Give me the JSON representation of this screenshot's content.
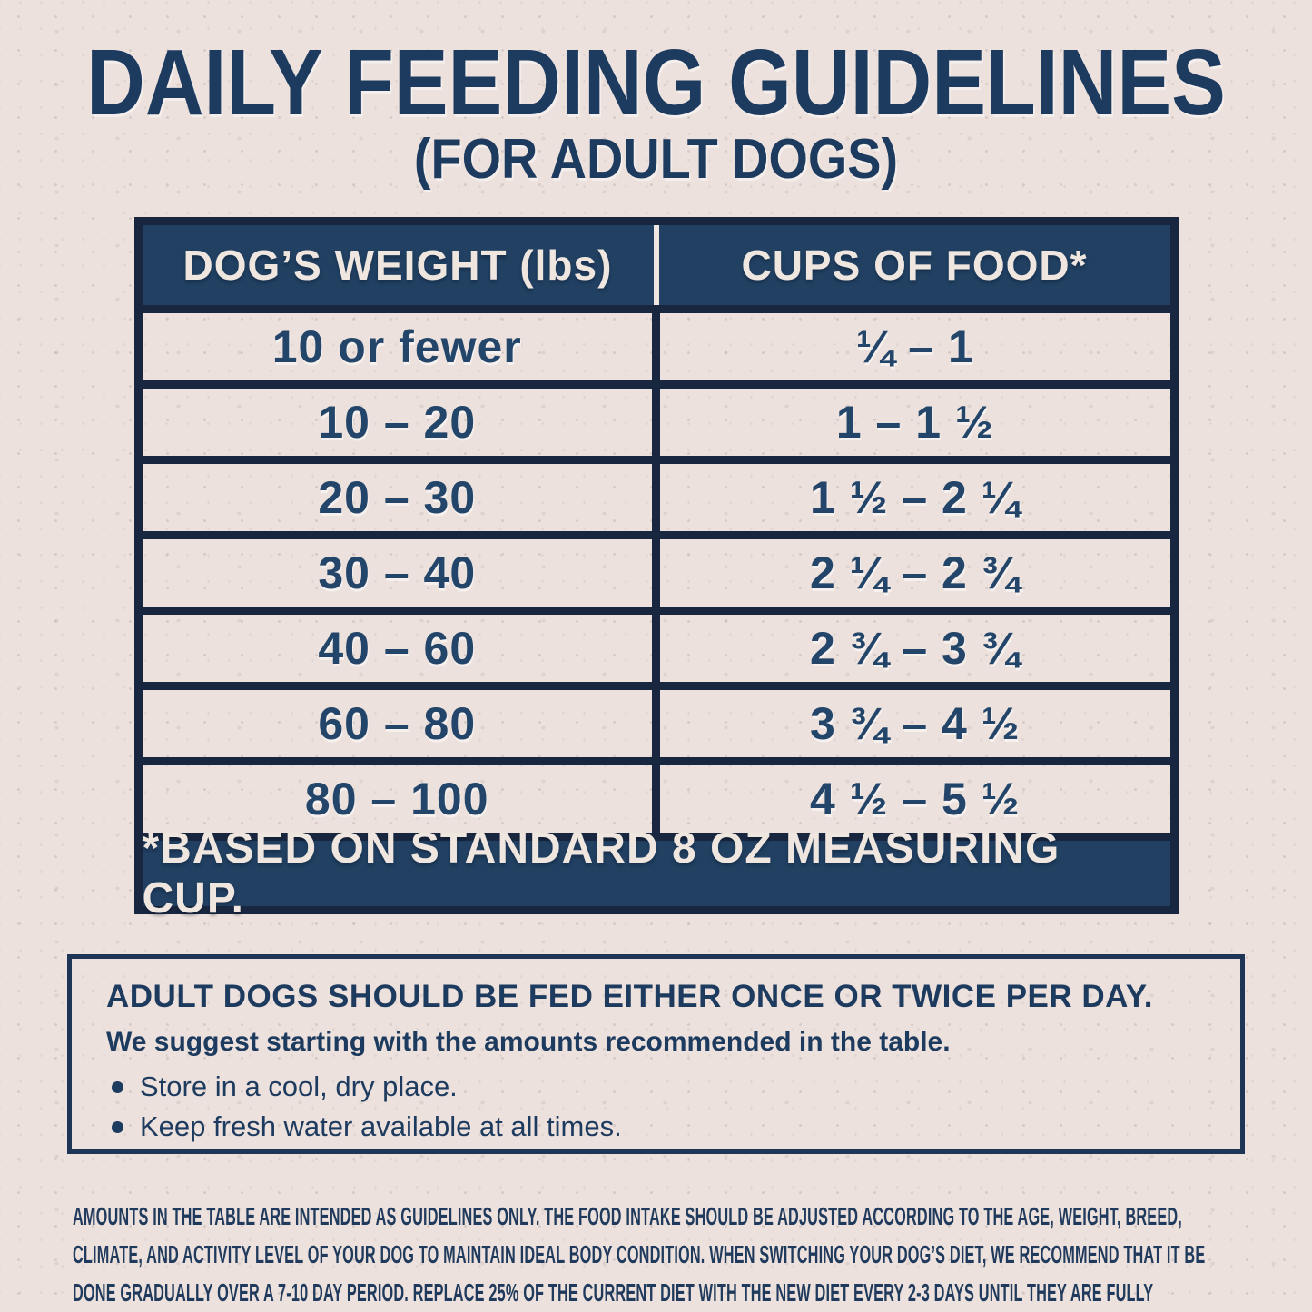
{
  "page": {
    "title": "DAILY FEEDING GUIDELINES",
    "subtitle": "(FOR ADULT DOGS)"
  },
  "table": {
    "headers": {
      "weight": "DOG’S WEIGHT (lbs)",
      "cups": "CUPS OF FOOD*"
    },
    "rows": [
      {
        "weight": "10 or fewer",
        "cups": "¼ – 1"
      },
      {
        "weight": "10 – 20",
        "cups": "1 – 1 ½"
      },
      {
        "weight": "20 – 30",
        "cups": "1 ½ – 2 ¼"
      },
      {
        "weight": "30 – 40",
        "cups": "2 ¼ – 2 ¾"
      },
      {
        "weight": "40 – 60",
        "cups": "2 ¾ – 3 ¾"
      },
      {
        "weight": "60 – 80",
        "cups": "3 ¾ – 4 ½"
      },
      {
        "weight": "80 – 100",
        "cups": "4 ½ – 5 ½"
      }
    ],
    "footnote": "*BASED ON STANDARD 8 OZ MEASURING CUP."
  },
  "info_box": {
    "heading": "ADULT DOGS SHOULD BE FED EITHER ONCE OR TWICE PER DAY.",
    "subheading": "We suggest starting with the amounts recommended in the table.",
    "bullets": [
      "Store in a cool, dry place.",
      "Keep fresh water available at all times."
    ]
  },
  "disclaimer": "AMOUNTS IN THE TABLE ARE INTENDED AS GUIDELINES ONLY. THE FOOD INTAKE SHOULD BE ADJUSTED ACCORDING TO THE AGE, WEIGHT, BREED, CLIMATE, AND ACTIVITY LEVEL OF YOUR DOG TO MAINTAIN IDEAL BODY CONDITION. WHEN SWITCHING YOUR DOG’S DIET, WE RECOMMEND THAT IT BE DONE GRADUALLY OVER A 7-10 DAY PERIOD. REPLACE 25% OF THE CURRENT DIET WITH THE NEW DIET EVERY 2-3 DAYS UNTIL THEY ARE FULLY TRANSITIONED.",
  "colors": {
    "navy_fill": "#214062",
    "grid_line": "#18263f",
    "text_navy": "#1d3a5f",
    "cream_text": "#efe6e0",
    "background": "#ece1dc"
  }
}
